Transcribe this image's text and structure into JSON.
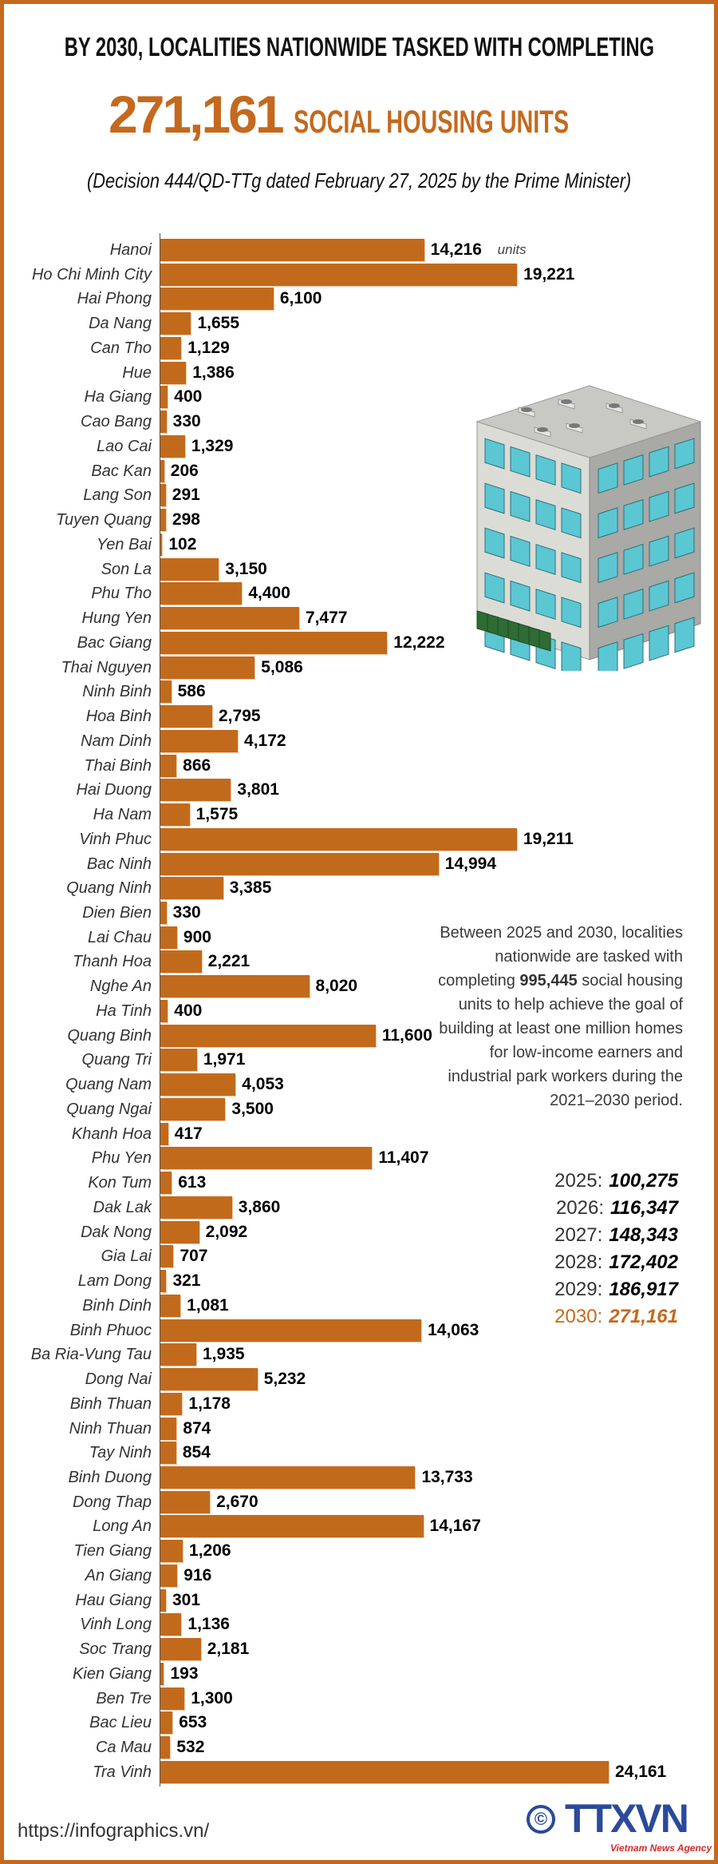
{
  "header": {
    "title": "BY 2030, LOCALITIES NATIONWIDE TASKED WITH COMPLETING",
    "total": "271,161",
    "total_suffix": "SOCIAL HOUSING UNITS",
    "subtitle": "(Decision 444/QD-TTg dated February 27, 2025 by the Prime Minister)"
  },
  "colors": {
    "accent": "#c4691d",
    "bar": "#c26a1c",
    "logo_blue": "#2b4a9b",
    "logo_red": "#d42a2a"
  },
  "chart_data": {
    "type": "bar",
    "orientation": "horizontal",
    "unit_label": "units",
    "categories": [
      "Hanoi",
      "Ho Chi Minh City",
      "Hai Phong",
      "Da Nang",
      "Can Tho",
      "Hue",
      "Ha Giang",
      "Cao Bang",
      "Lao Cai",
      "Bac Kan",
      "Lang Son",
      "Tuyen Quang",
      "Yen Bai",
      "Son La",
      "Phu Tho",
      "Hung Yen",
      "Bac Giang",
      "Thai Nguyen",
      "Ninh Binh",
      "Hoa Binh",
      "Nam Dinh",
      "Thai Binh",
      "Hai Duong",
      "Ha Nam",
      "Vinh Phuc",
      "Bac Ninh",
      "Quang Ninh",
      "Dien Bien",
      "Lai Chau",
      "Thanh Hoa",
      "Nghe An",
      "Ha Tinh",
      "Quang Binh",
      "Quang Tri",
      "Quang Nam",
      "Quang Ngai",
      "Khanh Hoa",
      "Phu Yen",
      "Kon Tum",
      "Dak Lak",
      "Dak Nong",
      "Gia Lai",
      "Lam Dong",
      "Binh Dinh",
      "Binh Phuoc",
      "Ba Ria-Vung Tau",
      "Dong Nai",
      "Binh Thuan",
      "Ninh Thuan",
      "Tay Ninh",
      "Binh Duong",
      "Dong Thap",
      "Long An",
      "Tien Giang",
      "An Giang",
      "Hau Giang",
      "Vinh Long",
      "Soc Trang",
      "Kien Giang",
      "Ben Tre",
      "Bac Lieu",
      "Ca Mau",
      "Tra Vinh"
    ],
    "values": [
      14216,
      19221,
      6100,
      1655,
      1129,
      1386,
      400,
      330,
      1329,
      206,
      291,
      298,
      102,
      3150,
      4400,
      7477,
      12222,
      5086,
      586,
      2795,
      4172,
      866,
      3801,
      1575,
      19211,
      14994,
      3385,
      330,
      900,
      2221,
      8020,
      400,
      11600,
      1971,
      4053,
      3500,
      417,
      11407,
      613,
      3860,
      2092,
      707,
      321,
      1081,
      14063,
      1935,
      5232,
      1178,
      874,
      854,
      13733,
      2670,
      14167,
      1206,
      916,
      301,
      1136,
      2181,
      193,
      1300,
      653,
      532,
      24161
    ],
    "labels": [
      "14,216",
      "19,221",
      "6,100",
      "1,655",
      "1,129",
      "1,386",
      "400",
      "330",
      "1,329",
      "206",
      "291",
      "298",
      "102",
      "3,150",
      "4,400",
      "7,477",
      "12,222",
      "5,086",
      "586",
      "2,795",
      "4,172",
      "866",
      "3,801",
      "1,575",
      "19,211",
      "14,994",
      "3,385",
      "330",
      "900",
      "2,221",
      "8,020",
      "400",
      "11,600",
      "1,971",
      "4,053",
      "3,500",
      "417",
      "11,407",
      "613",
      "3,860",
      "2,092",
      "707",
      "321",
      "1,081",
      "14,063",
      "1,935",
      "5,232",
      "1,178",
      "874",
      "854",
      "13,733",
      "2,670",
      "14,167",
      "1,206",
      "916",
      "301",
      "1,136",
      "2,181",
      "193",
      "1,300",
      "653",
      "532",
      "24,161"
    ],
    "xlim": [
      0,
      24161
    ],
    "grid": false
  },
  "note": {
    "before": "Between 2025 and 2030, localities nationwide are tasked with completing ",
    "highlight": "995,445",
    "after": " social housing units to help achieve the goal of building at least one million homes for low-income earners and industrial park workers during the 2021–2030 period."
  },
  "yearly": [
    {
      "year": "2025:",
      "value": "100,275"
    },
    {
      "year": "2026:",
      "value": "116,347"
    },
    {
      "year": "2027:",
      "value": "148,343"
    },
    {
      "year": "2028:",
      "value": "172,402"
    },
    {
      "year": "2029:",
      "value": "186,917"
    },
    {
      "year": "2030:",
      "value": "271,161"
    }
  ],
  "footer": {
    "url": "https://infographics.vn/",
    "logo_copyright": "©",
    "logo_text": "TTXVN",
    "logo_tagline": "Vietnam News Agency"
  },
  "icons": {
    "illustration": "apartment-building-illustration"
  }
}
